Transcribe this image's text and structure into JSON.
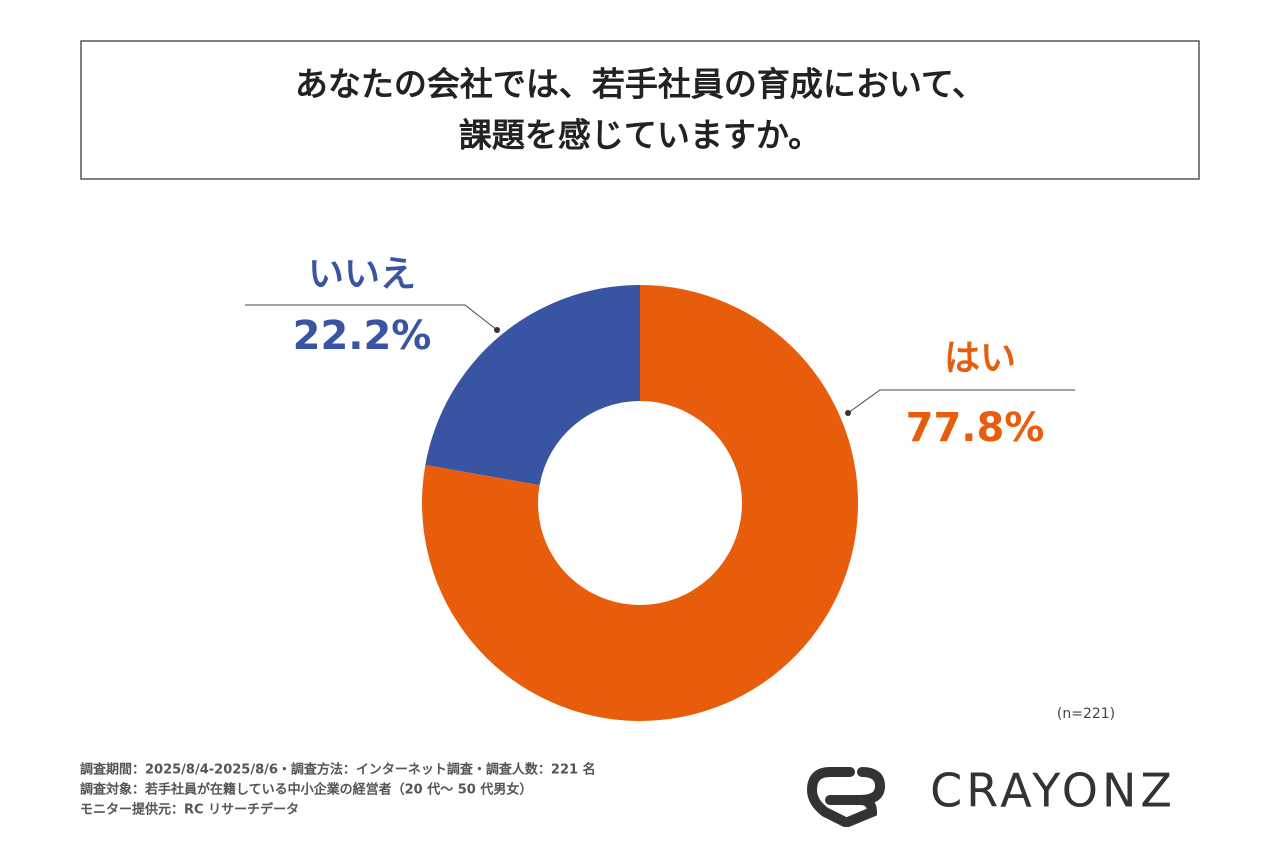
{
  "chart_data": {
    "type": "donut",
    "title": [
      "あなたの会社では、若手社員の育成において、",
      "課題を感じていますか。"
    ],
    "categories": [
      "はい",
      "いいえ"
    ],
    "values": [
      77.8,
      22.2
    ],
    "value_labels": [
      "77.8%",
      "22.2%"
    ],
    "colors": [
      "#e85d0c",
      "#3a54a4"
    ],
    "note": "(n=221)",
    "footnotes": [
      "調査期間：2025/8/4-2025/8/6・調査方法：インターネット調査・調査人数：221 名",
      "調査対象：若手社員が在籍している中小企業の経営者（20 代～ 50 代男女）",
      "モニター提供元：RC リサーチデータ"
    ],
    "logo": "CRAYONZ"
  }
}
